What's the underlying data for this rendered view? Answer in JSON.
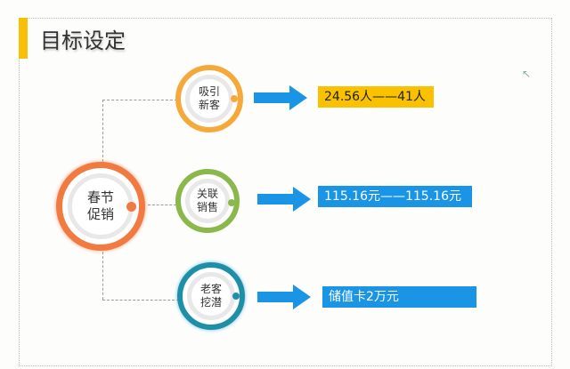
{
  "title": "目标设定",
  "center": {
    "label_line1": "春节",
    "label_line2": "促销",
    "color": "#f07a40"
  },
  "branches": [
    {
      "line1": "吸引",
      "line2": "新客",
      "color": "#f5a93a",
      "result": "24.56人——41人",
      "result_bg": "#f9c100",
      "result_color": "#222222"
    },
    {
      "line1": "关联",
      "line2": "销售",
      "color": "#8ab84a",
      "result": "115.16元——115.16元",
      "result_bg": "#1a95e6",
      "result_color": "#ffffff"
    },
    {
      "line1": "老客",
      "line2": "挖潜",
      "color": "#1f8fa8",
      "result": "储值卡2万元",
      "result_bg": "#1a95e6",
      "result_color": "#ffffff"
    }
  ],
  "arrow_color": "#1a95e6",
  "accent": "#f8c004"
}
